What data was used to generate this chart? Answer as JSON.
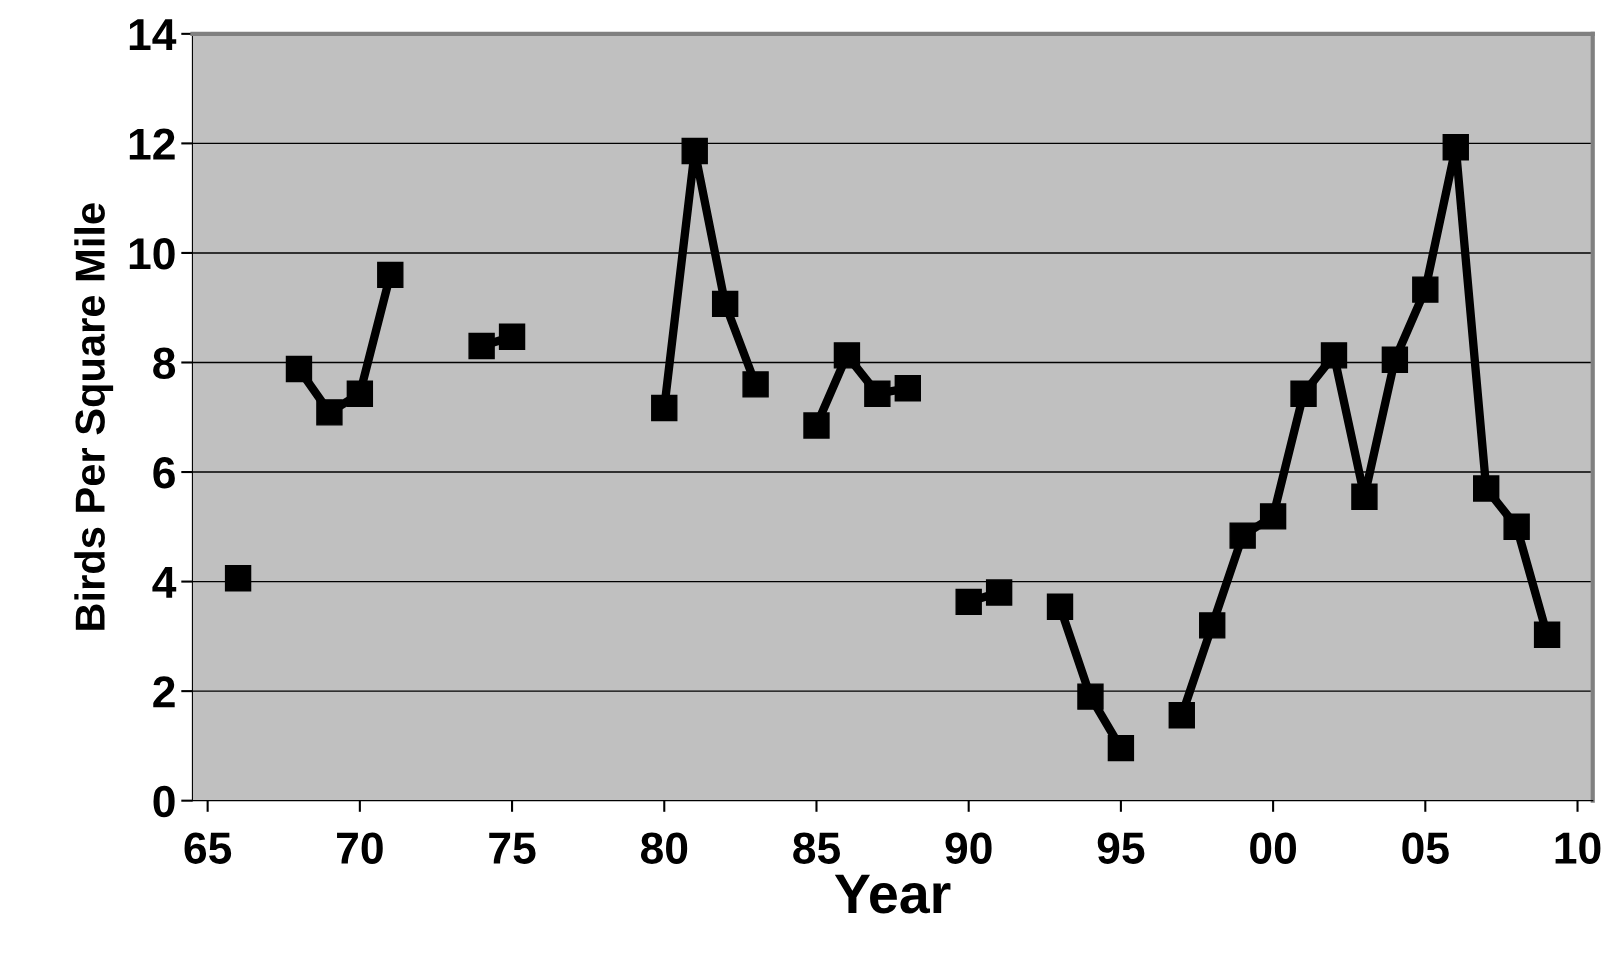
{
  "chart_data": {
    "type": "line",
    "xlabel": "Year",
    "ylabel": "Birds Per Square Mile",
    "x": [
      1966,
      1967,
      1968,
      1969,
      1970,
      1971,
      1972,
      1973,
      1974,
      1975,
      1976,
      1977,
      1978,
      1979,
      1980,
      1981,
      1982,
      1983,
      1984,
      1985,
      1986,
      1987,
      1988,
      1989,
      1990,
      1991,
      1992,
      1993,
      1994,
      1995,
      1996,
      1997,
      1998,
      1999,
      2000,
      2001,
      2002,
      2003,
      2004,
      2005,
      2006,
      2007,
      2008,
      2009
    ],
    "series": [
      {
        "color": "#000000",
        "values": [
          4.06,
          null,
          7.88,
          7.09,
          7.43,
          9.6,
          null,
          null,
          8.3,
          8.47,
          null,
          null,
          null,
          null,
          7.17,
          11.86,
          9.07,
          7.6,
          null,
          6.85,
          8.13,
          7.43,
          7.53,
          null,
          3.63,
          3.8,
          null,
          3.54,
          1.9,
          0.96,
          null,
          1.56,
          3.2,
          4.84,
          5.19,
          7.43,
          8.13,
          5.55,
          8.05,
          9.33,
          11.93,
          5.7,
          5.0,
          3.03
        ]
      }
    ],
    "xlim": [
      1964.5,
      2010.5
    ],
    "xticks": [
      {
        "value": 1965,
        "label": "65"
      },
      {
        "value": 1970,
        "label": "70"
      },
      {
        "value": 1975,
        "label": "75"
      },
      {
        "value": 1980,
        "label": "80"
      },
      {
        "value": 1985,
        "label": "85"
      },
      {
        "value": 1990,
        "label": "90"
      },
      {
        "value": 1995,
        "label": "95"
      },
      {
        "value": 2000,
        "label": "00"
      },
      {
        "value": 2005,
        "label": "05"
      },
      {
        "value": 2010,
        "label": "10"
      }
    ],
    "ylim": [
      0,
      14
    ],
    "yticks": [
      0,
      2,
      4,
      6,
      8,
      10,
      12,
      14
    ],
    "grid": "y",
    "marker": "square",
    "line_style": "solid",
    "legend": false
  }
}
